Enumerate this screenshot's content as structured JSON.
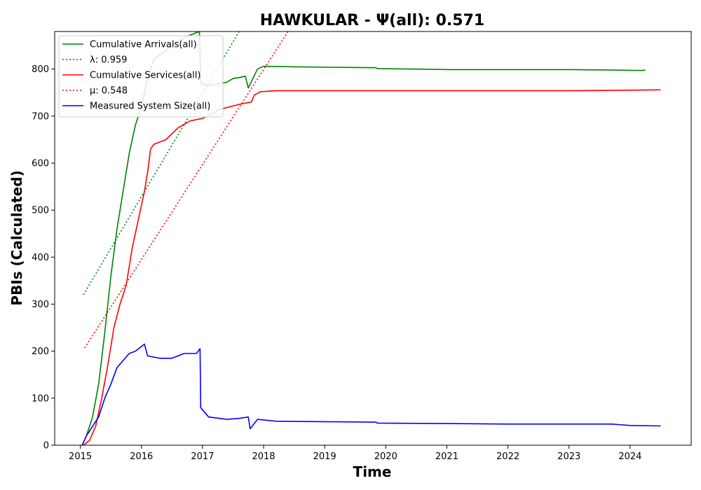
{
  "chart_data": {
    "type": "line",
    "title": "HAWKULAR -  Ψ(all): 0.571",
    "xlabel": "Time",
    "ylabel": "PBIs (Calculated)",
    "xlim": [
      2014.58,
      2025.0
    ],
    "ylim": [
      0,
      880
    ],
    "xticks": [
      2015,
      2016,
      2017,
      2018,
      2019,
      2020,
      2021,
      2022,
      2023,
      2024
    ],
    "yticks": [
      0,
      100,
      200,
      300,
      400,
      500,
      600,
      700,
      800
    ],
    "grid": false,
    "legend_position": "top-left",
    "series": [
      {
        "name": "Cumulative Arrivals(all)",
        "color": "#008000",
        "style": "solid",
        "x": [
          2015.03,
          2015.1,
          2015.2,
          2015.3,
          2015.4,
          2015.5,
          2015.6,
          2015.7,
          2015.8,
          2015.9,
          2015.95,
          2016.0,
          2016.1,
          2016.2,
          2016.4,
          2016.6,
          2016.75,
          2016.95,
          2016.97,
          2017.1,
          2017.4,
          2017.5,
          2017.6,
          2017.7,
          2017.75,
          2017.9,
          2018.0,
          2018.5,
          2019.0,
          2019.84,
          2019.86,
          2020.5,
          2021.0,
          2022.0,
          2023.0,
          2023.7,
          2024.2,
          2024.25
        ],
        "y": [
          0,
          20,
          60,
          130,
          240,
          360,
          460,
          540,
          620,
          680,
          700,
          720,
          780,
          820,
          840,
          860,
          870,
          880,
          770,
          765,
          772,
          780,
          782,
          785,
          760,
          800,
          806,
          805,
          804,
          803,
          801,
          800,
          799,
          799,
          799,
          798,
          797,
          798
        ]
      },
      {
        "name": "λ: 0.959",
        "color": "#008000",
        "style": "dotted",
        "x": [
          2015.05,
          2017.6
        ],
        "y": [
          320,
          880
        ]
      },
      {
        "name": "Cumulative Services(all)",
        "color": "#ff0000",
        "style": "solid",
        "x": [
          2015.05,
          2015.15,
          2015.25,
          2015.35,
          2015.45,
          2015.55,
          2015.65,
          2015.75,
          2015.85,
          2015.95,
          2016.0,
          2016.05,
          2016.1,
          2016.15,
          2016.2,
          2016.4,
          2016.6,
          2016.8,
          2017.0,
          2017.3,
          2017.6,
          2017.8,
          2017.85,
          2017.95,
          2018.2,
          2019.0,
          2020.0,
          2021.0,
          2022.0,
          2023.0,
          2023.9,
          2024.5
        ],
        "y": [
          0,
          10,
          40,
          100,
          170,
          250,
          300,
          340,
          420,
          480,
          510,
          540,
          580,
          630,
          640,
          650,
          675,
          690,
          695,
          715,
          725,
          730,
          745,
          752,
          754,
          754,
          754,
          754,
          754,
          754,
          755,
          756
        ]
      },
      {
        "name": "μ: 0.548",
        "color": "#ff0000",
        "style": "dotted",
        "x": [
          2015.07,
          2018.4
        ],
        "y": [
          207,
          880
        ]
      },
      {
        "name": "Measured System Size(all)",
        "color": "#0000ff",
        "style": "solid",
        "x": [
          2015.03,
          2015.1,
          2015.2,
          2015.3,
          2015.4,
          2015.5,
          2015.6,
          2015.7,
          2015.8,
          2015.9,
          2016.0,
          2016.05,
          2016.1,
          2016.3,
          2016.5,
          2016.7,
          2016.9,
          2016.96,
          2016.97,
          2017.1,
          2017.4,
          2017.6,
          2017.75,
          2017.78,
          2017.9,
          2018.2,
          2019.0,
          2019.84,
          2019.86,
          2021.0,
          2022.0,
          2023.0,
          2023.7,
          2024.0,
          2024.5
        ],
        "y": [
          0,
          20,
          40,
          60,
          100,
          130,
          165,
          180,
          195,
          200,
          210,
          215,
          190,
          185,
          185,
          195,
          195,
          205,
          80,
          60,
          55,
          57,
          60,
          35,
          55,
          51,
          50,
          49,
          47,
          46,
          45,
          45,
          45,
          42,
          41
        ]
      }
    ]
  }
}
